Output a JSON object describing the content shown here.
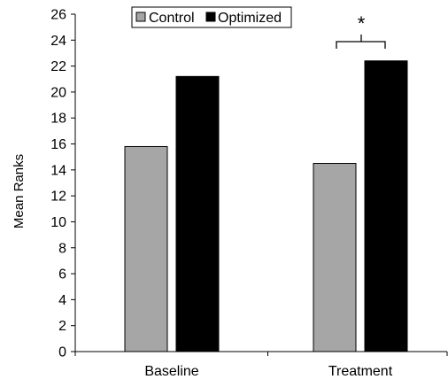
{
  "chart_data": {
    "type": "bar",
    "categories": [
      "Baseline",
      "Treatment"
    ],
    "series": [
      {
        "name": "Control",
        "values": [
          15.8,
          14.5
        ],
        "color": "#a6a6a6"
      },
      {
        "name": "Optimized",
        "values": [
          21.2,
          22.4
        ],
        "color": "#000000"
      }
    ],
    "ylabel": "Mean Ranks",
    "xlabel": "",
    "ylim": [
      0,
      26
    ],
    "yticks": [
      "0",
      "2",
      "4",
      "6",
      "8",
      "10",
      "12",
      "14",
      "16",
      "18",
      "20",
      "22",
      "24",
      "26"
    ],
    "legend_placement": "top",
    "grid": false,
    "annotation": {
      "text": "*",
      "category": "Treatment",
      "description_type": "significance-bracket"
    }
  }
}
